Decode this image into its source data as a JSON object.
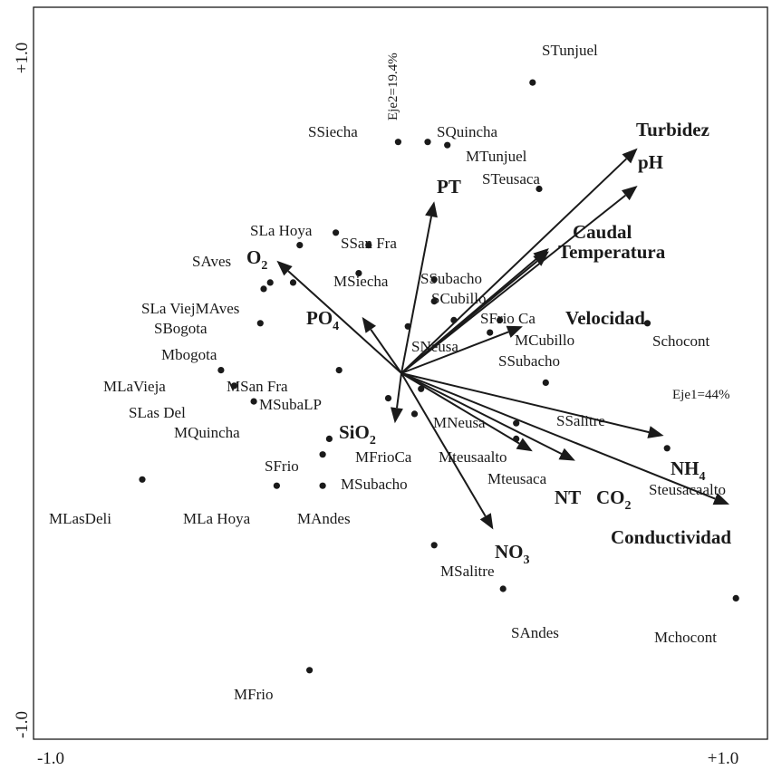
{
  "chart_data": {
    "type": "scatter",
    "subtype": "ordination-biplot",
    "xlim": [
      -1.0,
      1.0
    ],
    "ylim": [
      -1.0,
      1.0
    ],
    "tick_labels": {
      "x_min": "-1.0",
      "x_max": "+1.0",
      "y_min": "-1.0",
      "y_max": "+1.0"
    },
    "axis1_label": "Eje1=44%",
    "axis2_label": "Eje2=19.4%",
    "grid": false,
    "sites": [
      {
        "label": "STunjuel",
        "x": 0.4,
        "y": 0.93
      },
      {
        "label": "SSiecha",
        "x": -0.01,
        "y": 0.74
      },
      {
        "label": "SQuincha",
        "x": 0.08,
        "y": 0.74
      },
      {
        "label": "MTunjuel",
        "x": 0.14,
        "y": 0.73
      },
      {
        "label": "STeusaca",
        "x": 0.42,
        "y": 0.59
      },
      {
        "label": "SLa Hoya",
        "x": -0.2,
        "y": 0.45
      },
      {
        "label": "SSan Fra",
        "x": -0.1,
        "y": 0.41
      },
      {
        "label": "SAves",
        "x": -0.31,
        "y": 0.41
      },
      {
        "label": "MSiecha",
        "x": -0.13,
        "y": 0.32
      },
      {
        "label": "SSubacho",
        "x": 0.1,
        "y": 0.3
      },
      {
        "label": "SCubillo",
        "x": 0.1,
        "y": 0.23
      },
      {
        "label": "SLa Viej",
        "x": -0.4,
        "y": 0.29
      },
      {
        "label": "MAves",
        "x": -0.33,
        "y": 0.29
      },
      {
        "label": "SBogota",
        "x": -0.42,
        "y": 0.27
      },
      {
        "label": "SFrio Ca",
        "x": 0.16,
        "y": 0.17
      },
      {
        "label": "SNeusa",
        "x": 0.02,
        "y": 0.15
      },
      {
        "label": "MCubillo",
        "x": 0.3,
        "y": 0.17
      },
      {
        "label": "Mbogota",
        "x": -0.43,
        "y": 0.16
      },
      {
        "label": "Schocont",
        "x": 0.75,
        "y": 0.16
      },
      {
        "label": "SSubacho",
        "x": 0.27,
        "y": 0.13
      },
      {
        "label": "MLaVieja",
        "x": -0.55,
        "y": 0.01
      },
      {
        "label": "MSan Fra",
        "x": -0.19,
        "y": 0.01
      },
      {
        "label": "SLas Del",
        "x": -0.51,
        "y": -0.04
      },
      {
        "label": "MSubaLP",
        "x": -0.04,
        "y": -0.08
      },
      {
        "label": "MQuincha",
        "x": -0.45,
        "y": -0.09
      },
      {
        "label": "SSalitre",
        "x": 0.44,
        "y": -0.03
      },
      {
        "label": "MNeusa",
        "x": 0.06,
        "y": -0.05
      },
      {
        "label": "MFrioCa",
        "x": 0.04,
        "y": -0.13
      },
      {
        "label": "Mteusaalto",
        "x": 0.35,
        "y": -0.16
      },
      {
        "label": "SFrio",
        "x": -0.22,
        "y": -0.21
      },
      {
        "label": "MSubacho",
        "x": -0.24,
        "y": -0.26
      },
      {
        "label": "Mteusaca",
        "x": 0.35,
        "y": -0.21
      },
      {
        "label": "NH4",
        "x": 0.81,
        "y": -0.24
      },
      {
        "label": "MLasDeli",
        "x": -0.79,
        "y": -0.34
      },
      {
        "label": "MLa Hoya",
        "x": -0.38,
        "y": -0.36
      },
      {
        "label": "MAndes",
        "x": -0.24,
        "y": -0.36
      },
      {
        "label": "MSalitre",
        "x": 0.1,
        "y": -0.55
      },
      {
        "label": "SAndes",
        "x": 0.31,
        "y": -0.69
      },
      {
        "label": "Mchocont",
        "x": 1.02,
        "y": -0.72
      },
      {
        "label": "MFrio",
        "x": -0.28,
        "y": -0.95
      }
    ],
    "site_labels": {
      "STunjuel": "STunjuel",
      "SSiecha": "SSiecha",
      "SQuincha": "SQuincha",
      "MTunjuel": "MTunjuel",
      "STeusaca": "STeusaca",
      "SLaHoya": "SLa Hoya",
      "SSanFra": "SSan Fra",
      "SAves": "SAves",
      "MSiecha": "MSiecha",
      "SSubacho1": "SSubacho",
      "SCubillo": "SCubillo",
      "SLaViejMAves": "SLa ViejMAves",
      "SBogota": "SBogota",
      "SFrioCa": "SFrio Ca",
      "SNeusa": "SNeusa",
      "MCubillo": "MCubillo",
      "Mbogota": "Mbogota",
      "Schocont": "Schocont",
      "SSubacho2": "SSubacho",
      "MLaVieja": "MLaVieja",
      "MSanFra": "MSan Fra",
      "SLasDel": "SLas Del",
      "MSubaLP": "MSubaLP",
      "MQuincha": "MQuincha",
      "SSalitre": "SSalitre",
      "MNeusa": "MNeusa",
      "MFrioCa": "MFrioCa",
      "Mteusaalto": "Mteusaalto",
      "SFrio": "SFrio",
      "MSubacho": "MSubacho",
      "Mteusaca": "Mteusaca",
      "Steusacaalto": "Steusacaalto",
      "MLasDeli": "MLasDeli",
      "MLaHoya": "MLa Hoya",
      "MAndes": "MAndes",
      "MSalitre": "MSalitre",
      "SAndes": "SAndes",
      "Mchocont": "Mchocont",
      "MFrio": "MFrio"
    },
    "variables": [
      {
        "label": "Turbidez",
        "x": 0.72,
        "y": 0.72
      },
      {
        "label": "pH",
        "x": 0.72,
        "y": 0.6
      },
      {
        "label": "PT",
        "x": 0.1,
        "y": 0.55
      },
      {
        "label": "Caudal",
        "x": 0.45,
        "y": 0.4
      },
      {
        "label": "Temperatura",
        "x": 0.45,
        "y": 0.39
      },
      {
        "label": "O2",
        "x": -0.38,
        "y": 0.36
      },
      {
        "label": "PO4",
        "x": -0.12,
        "y": 0.18
      },
      {
        "label": "Velocidad",
        "x": 0.37,
        "y": 0.15
      },
      {
        "label": "SiO2",
        "x": -0.02,
        "y": -0.16
      },
      {
        "label": "NH4",
        "x": 0.8,
        "y": -0.2
      },
      {
        "label": "NT",
        "x": 0.53,
        "y": -0.28
      },
      {
        "label": "CO2",
        "x": 0.4,
        "y": -0.25
      },
      {
        "label": "Conductividad",
        "x": 1.0,
        "y": -0.42
      },
      {
        "label": "NO3",
        "x": 0.28,
        "y": -0.5
      }
    ],
    "variable_labels": {
      "Turbidez": "Turbidez",
      "pH": "pH",
      "PT": "PT",
      "Caudal": "Caudal",
      "Temperatura": "Temperatura",
      "O2_base": "O",
      "O2_sub": "2",
      "PO4_base": "PO",
      "PO4_sub": "4",
      "Velocidad": "Velocidad",
      "SiO2_base": "SiO",
      "SiO2_sub": "2",
      "NH4_base": "NH",
      "NH4_sub": "4",
      "NT": "NT",
      "CO2_base": "CO",
      "CO2_sub": "2",
      "Conductividad": "Conductividad",
      "NO3_base": "NO",
      "NO3_sub": "3"
    }
  }
}
